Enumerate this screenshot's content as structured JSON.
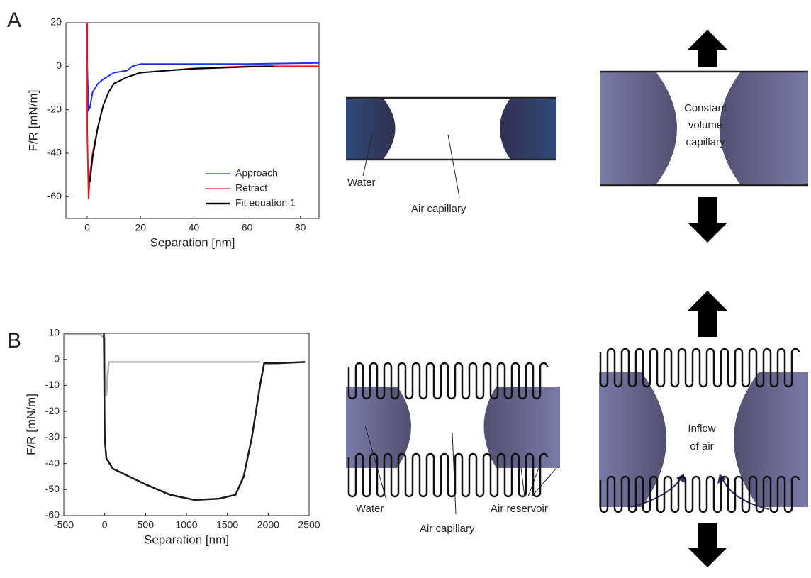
{
  "chart_data": [
    {
      "type": "line",
      "panel": "A",
      "ylabel": "F/R [mN/m]",
      "xlabel": "Separation [nm]",
      "xlim": [
        -8,
        87
      ],
      "xticks": [
        0,
        20,
        40,
        60,
        80
      ],
      "ylim": [
        -70,
        20
      ],
      "yticks": [
        -60,
        -40,
        -20,
        0,
        20
      ],
      "legend": "lower right",
      "series": [
        {
          "name": "Approach",
          "color": "#2030e8",
          "x": [
            0,
            0,
            0.5,
            1,
            2,
            4,
            6,
            10,
            15,
            17,
            20,
            40,
            60,
            87
          ],
          "values": [
            20,
            0,
            -20,
            -19,
            -12,
            -8,
            -6,
            -3,
            -2,
            0,
            1,
            1,
            1,
            1.5
          ]
        },
        {
          "name": "Retract",
          "color": "#e02020",
          "x": [
            0,
            0,
            0.5,
            1,
            2,
            4,
            6,
            8,
            10,
            15,
            20,
            30,
            40,
            60,
            87
          ],
          "values": [
            20,
            -30,
            -61,
            -50,
            -40,
            -28,
            -18,
            -12,
            -8,
            -5,
            -3,
            -2,
            -1,
            0,
            0
          ]
        },
        {
          "name": "Fit equation 1",
          "color": "#000000",
          "x": [
            1,
            2,
            4,
            6,
            8,
            10,
            15,
            20,
            30,
            40,
            60,
            70
          ],
          "values": [
            -53,
            -42,
            -28,
            -18,
            -12,
            -8,
            -5,
            -3,
            -2,
            -1.2,
            -0.3,
            0
          ]
        }
      ]
    },
    {
      "type": "line",
      "panel": "B",
      "ylabel": "F/R [mN/m]",
      "xlabel": "Separation [nm]",
      "xlim": [
        -500,
        2500
      ],
      "xticks": [
        -500,
        0,
        500,
        1000,
        1500,
        2000,
        2500
      ],
      "ylim": [
        -60,
        10
      ],
      "yticks": [
        -60,
        -50,
        -40,
        -30,
        -20,
        -10,
        0,
        10
      ],
      "series": [
        {
          "color": "#b0b0b0",
          "x": [
            -500,
            -50,
            0,
            20,
            50,
            500,
            1000,
            1500,
            1900
          ],
          "values": [
            9.5,
            9.5,
            8,
            -14,
            -1,
            -1,
            -1,
            -1,
            -1
          ]
        },
        {
          "color": "#1a1a1a",
          "x": [
            -10,
            0,
            20,
            100,
            300,
            500,
            800,
            1100,
            1400,
            1600,
            1700,
            1800,
            1900,
            1950,
            2100,
            2450
          ],
          "values": [
            10,
            -30,
            -38,
            -42,
            -45,
            -48,
            -52,
            -54,
            -53.5,
            -52,
            -45,
            -30,
            -10,
            -1.5,
            -1.5,
            -1
          ]
        }
      ]
    }
  ],
  "diagrams": {
    "a_middle": {
      "water": "Water",
      "air": "Air capillary"
    },
    "a_right": {
      "label": [
        "Constant",
        "volume",
        "capillary"
      ]
    },
    "b_middle": {
      "water": "Water",
      "air": "Air capillary",
      "reservoir": "Air reservoir"
    },
    "b_right": {
      "label": [
        "Inflow",
        "of air"
      ]
    }
  }
}
